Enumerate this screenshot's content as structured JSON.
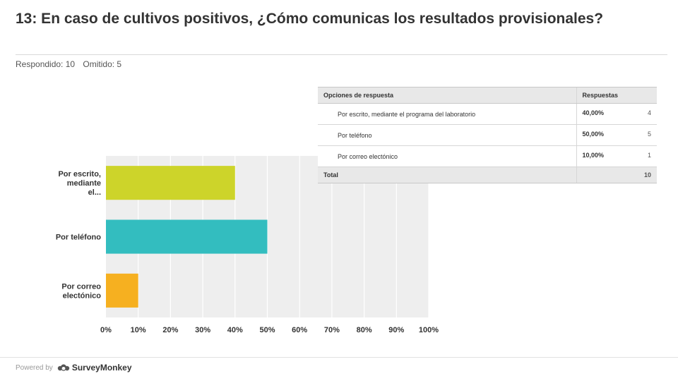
{
  "header": {
    "title": "13: En caso de cultivos positivos, ¿Cómo comunicas los resultados provisionales?",
    "answered": "Respondido: 10",
    "skipped": "Omitido: 5"
  },
  "chart_data": {
    "type": "bar",
    "orientation": "horizontal",
    "categories": [
      "Por escrito, mediante el...",
      "Por teléfono",
      "Por correo electónico"
    ],
    "values": [
      40,
      50,
      10
    ],
    "xlim": [
      0,
      100
    ],
    "ticks": [
      "0%",
      "10%",
      "20%",
      "30%",
      "40%",
      "50%",
      "60%",
      "70%",
      "80%",
      "90%",
      "100%"
    ],
    "colors": [
      "#cdd42a",
      "#33bdbf",
      "#f6b020"
    ],
    "grid": true
  },
  "table": {
    "headers": {
      "option": "Opciones de respuesta",
      "responses": "Respuestas"
    },
    "rows": [
      {
        "option": "Por escrito, mediante el programa del laboratorio",
        "percent": "40,00%",
        "count": "4"
      },
      {
        "option": "Por teléfono",
        "percent": "50,00%",
        "count": "5"
      },
      {
        "option": "Por correo electónico",
        "percent": "10,00%",
        "count": "1"
      }
    ],
    "total": {
      "label": "Total",
      "count": "10"
    }
  },
  "footer": {
    "powered_by": "Powered by",
    "brand": "SurveyMonkey"
  }
}
